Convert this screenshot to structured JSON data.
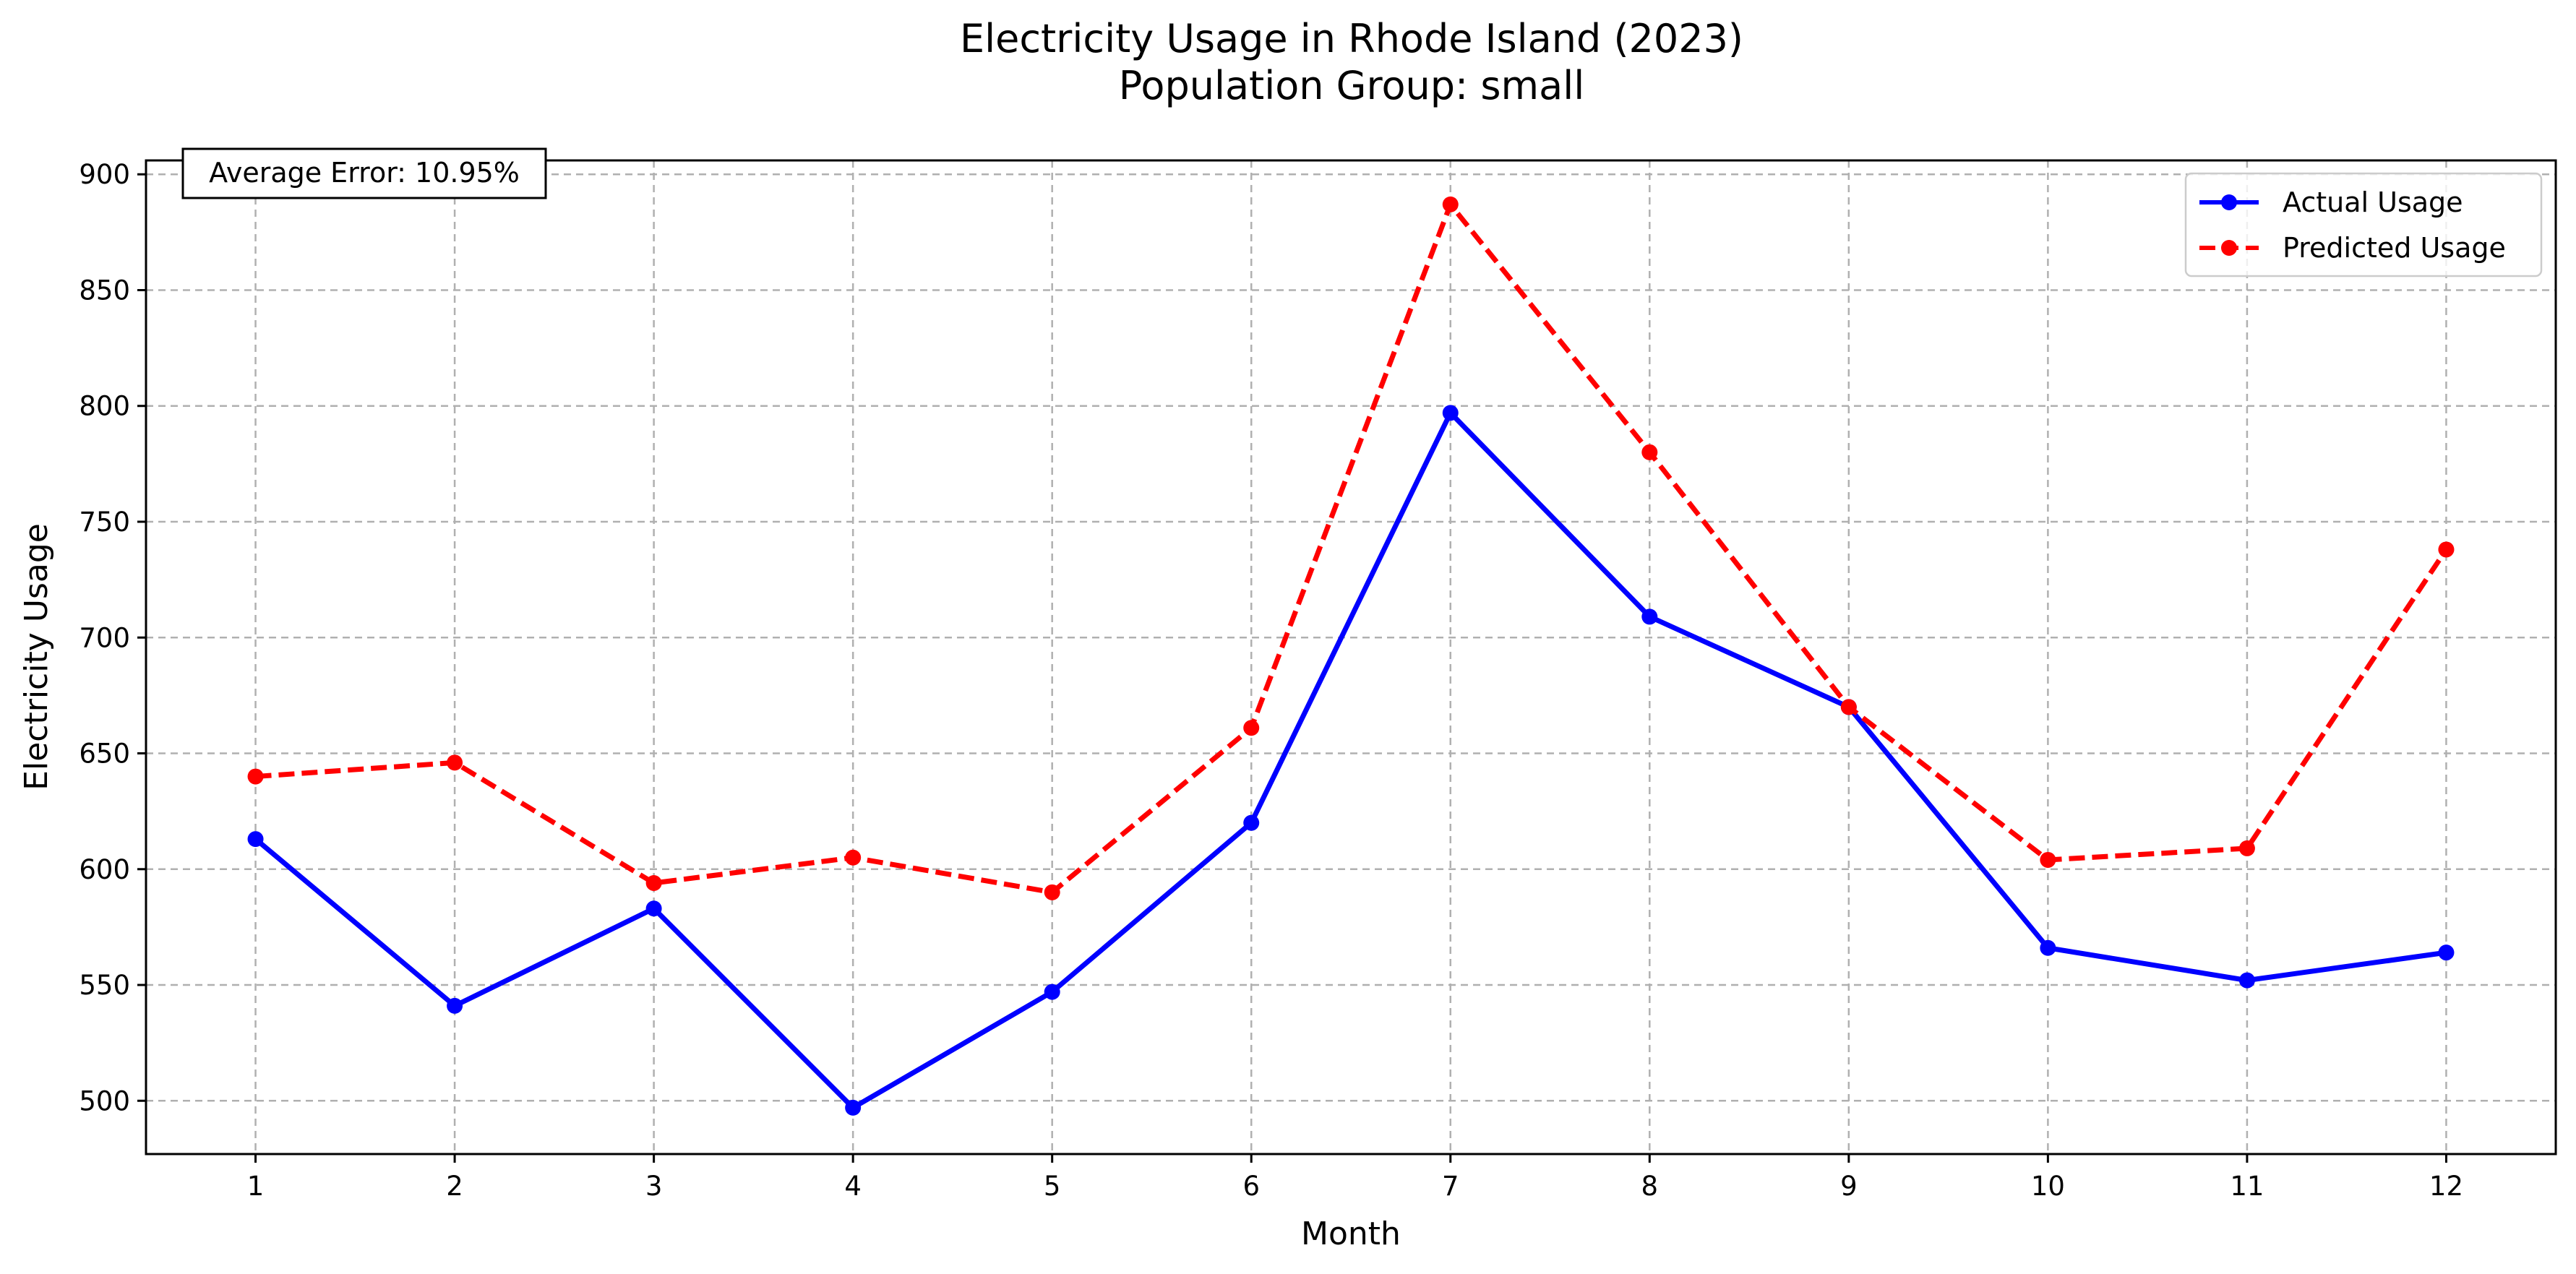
{
  "chart_data": {
    "type": "line",
    "title": "Electricity Usage in Rhode Island (2023)",
    "subtitle": "Population Group: small",
    "xlabel": "Month",
    "ylabel": "Electricity Usage",
    "x": [
      1,
      2,
      3,
      4,
      5,
      6,
      7,
      8,
      9,
      10,
      11,
      12
    ],
    "x_tick_labels": [
      "1",
      "2",
      "3",
      "4",
      "5",
      "6",
      "7",
      "8",
      "9",
      "10",
      "11",
      "12"
    ],
    "xlim": [
      0.45,
      12.55
    ],
    "ylim": [
      477,
      906
    ],
    "y_ticks": [
      500,
      550,
      600,
      650,
      700,
      750,
      800,
      850,
      900
    ],
    "y_tick_labels": [
      "500",
      "550",
      "600",
      "650",
      "700",
      "750",
      "800",
      "850",
      "900"
    ],
    "grid": true,
    "legend_position": "top-right",
    "series": [
      {
        "name": "Actual Usage",
        "color": "#0000ff",
        "style": "solid",
        "marker": "circle",
        "values": [
          613,
          541,
          583,
          497,
          547,
          620,
          797,
          709,
          670,
          566,
          552,
          564
        ]
      },
      {
        "name": "Predicted Usage",
        "color": "#ff0000",
        "style": "dashed",
        "marker": "circle",
        "values": [
          640,
          646,
          594,
          605,
          590,
          661,
          887,
          780,
          670,
          604,
          609,
          738
        ]
      }
    ],
    "annotation": {
      "text": "Average Error: 10.95%",
      "position": "top-left"
    }
  }
}
